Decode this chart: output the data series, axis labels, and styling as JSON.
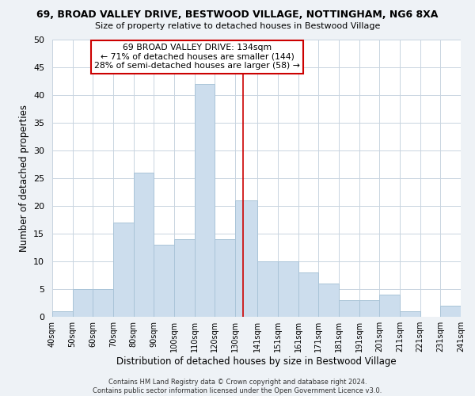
{
  "title": "69, BROAD VALLEY DRIVE, BESTWOOD VILLAGE, NOTTINGHAM, NG6 8XA",
  "subtitle": "Size of property relative to detached houses in Bestwood Village",
  "xlabel": "Distribution of detached houses by size in Bestwood Village",
  "ylabel": "Number of detached properties",
  "bar_color": "#ccdded",
  "bar_edge_color": "#aac4d8",
  "annotation_box_text": "69 BROAD VALLEY DRIVE: 134sqm\n← 71% of detached houses are smaller (144)\n28% of semi-detached houses are larger (58) →",
  "annotation_box_color": "#ffffff",
  "annotation_box_edge_color": "#cc0000",
  "vline_x": 134,
  "vline_color": "#cc0000",
  "footer_line1": "Contains HM Land Registry data © Crown copyright and database right 2024.",
  "footer_line2": "Contains public sector information licensed under the Open Government Licence v3.0.",
  "bins": [
    40,
    50,
    60,
    70,
    80,
    90,
    100,
    110,
    120,
    130,
    141,
    151,
    161,
    171,
    181,
    191,
    201,
    211,
    221,
    231,
    241
  ],
  "counts": [
    1,
    5,
    5,
    17,
    26,
    13,
    14,
    42,
    14,
    21,
    10,
    10,
    8,
    6,
    3,
    3,
    4,
    1,
    0,
    2
  ],
  "xlim": [
    40,
    241
  ],
  "ylim": [
    0,
    50
  ],
  "yticks": [
    0,
    5,
    10,
    15,
    20,
    25,
    30,
    35,
    40,
    45,
    50
  ],
  "xtick_labels": [
    "40sqm",
    "50sqm",
    "60sqm",
    "70sqm",
    "80sqm",
    "90sqm",
    "100sqm",
    "110sqm",
    "120sqm",
    "130sqm",
    "141sqm",
    "151sqm",
    "161sqm",
    "171sqm",
    "181sqm",
    "191sqm",
    "201sqm",
    "211sqm",
    "221sqm",
    "231sqm",
    "241sqm"
  ],
  "background_color": "#eef2f6",
  "plot_background_color": "#ffffff",
  "grid_color": "#c8d4e0"
}
